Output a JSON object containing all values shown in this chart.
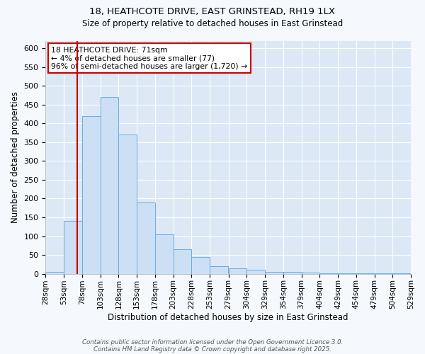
{
  "title_line1": "18, HEATHCOTE DRIVE, EAST GRINSTEAD, RH19 1LX",
  "title_line2": "Size of property relative to detached houses in East Grinstead",
  "xlabel": "Distribution of detached houses by size in East Grinstead",
  "ylabel": "Number of detached properties",
  "bar_color": "#ccdff5",
  "bar_edge_color": "#6aaee0",
  "background_color": "#dce8f5",
  "grid_color": "#ffffff",
  "annotation_box_color": "#ffffff",
  "annotation_border_color": "#cc0000",
  "vline_color": "#cc0000",
  "bin_edges": [
    28,
    53,
    78,
    103,
    128,
    153,
    178,
    203,
    228,
    253,
    279,
    304,
    329,
    354,
    379,
    404,
    429,
    454,
    479,
    504,
    529
  ],
  "bar_heights": [
    5,
    140,
    420,
    470,
    370,
    190,
    105,
    65,
    45,
    20,
    15,
    10,
    5,
    5,
    3,
    2,
    1,
    1,
    1,
    1
  ],
  "xtick_labels": [
    "28sqm",
    "53sqm",
    "78sqm",
    "103sqm",
    "128sqm",
    "153sqm",
    "178sqm",
    "203sqm",
    "228sqm",
    "253sqm",
    "279sqm",
    "304sqm",
    "329sqm",
    "354sqm",
    "379sqm",
    "404sqm",
    "429sqm",
    "454sqm",
    "479sqm",
    "504sqm",
    "529sqm"
  ],
  "ylim": [
    0,
    620
  ],
  "yticks": [
    0,
    50,
    100,
    150,
    200,
    250,
    300,
    350,
    400,
    450,
    500,
    550,
    600
  ],
  "vline_x": 71,
  "annotation_text": "18 HEATHCOTE DRIVE: 71sqm\n← 4% of detached houses are smaller (77)\n96% of semi-detached houses are larger (1,720) →",
  "footnote_line1": "Contains HM Land Registry data © Crown copyright and database right 2025.",
  "footnote_line2": "Contains public sector information licensed under the Open Government Licence 3.0."
}
